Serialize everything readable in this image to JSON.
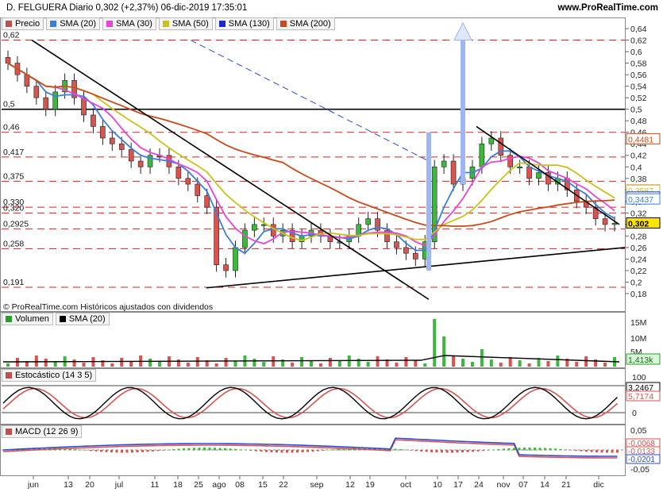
{
  "header": {
    "title": "D. FELGUERA Diario 0,302 (+2,37%) 06-dic-2019 17:35:01",
    "brand": "www.ProRealTime.com"
  },
  "price_panel": {
    "legend": [
      "Precio",
      "SMA (20)",
      "SMA (30)",
      "SMA (50)",
      "SMA (130)",
      "SMA (200)"
    ],
    "legend_colors": [
      "#c0504d",
      "#3a7fd9",
      "#e845d8",
      "#c9c21a",
      "#1a2bc9",
      "#c84a1a"
    ],
    "credit": "© ProRealTime.com Históricos ajustados con dividendos",
    "left_levels": [
      "0,62",
      "0,5",
      "0,46",
      "0,417",
      "0,375",
      "0,330",
      "0,320",
      "0,2925",
      "0,258",
      "0,191"
    ],
    "right_ticks": [
      "0,64",
      "0,62",
      "0,6",
      "0,58",
      "0,56",
      "0,54",
      "0,52",
      "0,5",
      "0,48",
      "0,46",
      "0,44",
      "0,42",
      "0,4",
      "0,38",
      "0,36",
      "0,34",
      "0,32",
      "0,3",
      "0,28",
      "0,26",
      "0,24",
      "0,22",
      "0,2",
      "0,18"
    ],
    "value_tags": [
      "0,4481",
      "0,3592",
      "0,3587",
      "0,3469",
      "0,3437",
      "0,302"
    ]
  },
  "volume_panel": {
    "legend": [
      "Volumen",
      "SMA (20)"
    ],
    "ticks": [
      "15M",
      "10M",
      "5M"
    ],
    "value_tag": "1,413k"
  },
  "stoch_panel": {
    "legend": "Estocástico (14 3 5)",
    "ticks": [
      "100",
      "0"
    ],
    "value_tags": [
      "3,2467",
      "5,7174"
    ]
  },
  "macd_panel": {
    "legend": "MACD (12 26 9)",
    "ticks": [
      "0,05",
      "0",
      "-0,05"
    ],
    "value_tags": [
      "-0,0068",
      "-0,0133",
      "-0,0201"
    ]
  },
  "x_axis": [
    "jun",
    "13",
    "20",
    "jul",
    "11",
    "18",
    "25",
    "ago",
    "08",
    "15",
    "22",
    "sep",
    "12",
    "19",
    "oct",
    "10",
    "17",
    "24",
    "nov",
    "07",
    "14",
    "21",
    "dic"
  ],
  "chart_data": {
    "type": "line",
    "title": "D. FELGUERA Diario",
    "last_price": 0.302,
    "change_pct": 2.37,
    "date": "06-dic-2019",
    "ylim": [
      0.18,
      0.64
    ],
    "sma": {
      "SMA (20)": 0.3437,
      "SMA (30)": 0.3592,
      "SMA (50)": 0.3587,
      "SMA (130)": 0.3469,
      "SMA (200)": 0.4481
    },
    "series": [
      {
        "name": "Precio",
        "values": [
          0.58,
          0.56,
          0.54,
          0.52,
          0.5,
          0.53,
          0.55,
          0.52,
          0.49,
          0.47,
          0.45,
          0.44,
          0.43,
          0.41,
          0.4,
          0.42,
          0.42,
          0.4,
          0.38,
          0.37,
          0.35,
          0.33,
          0.23,
          0.22,
          0.26,
          0.29,
          0.3,
          0.3,
          0.28,
          0.29,
          0.27,
          0.28,
          0.29,
          0.28,
          0.27,
          0.27,
          0.28,
          0.3,
          0.31,
          0.29,
          0.27,
          0.26,
          0.25,
          0.24,
          0.27,
          0.4,
          0.41,
          0.37,
          0.38,
          0.4,
          0.44,
          0.45,
          0.42,
          0.4,
          0.4,
          0.38,
          0.39,
          0.37,
          0.38,
          0.36,
          0.34,
          0.33,
          0.31,
          0.3,
          0.302
        ]
      }
    ]
  }
}
